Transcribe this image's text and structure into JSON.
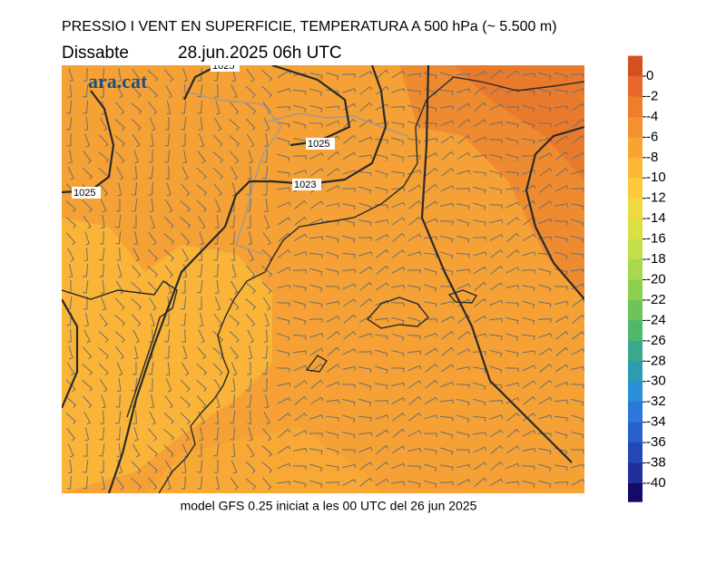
{
  "title": "PRESSIO I VENT EN SUPERFICIE, TEMPERATURA A 500 hPa (~ 5.500 m)",
  "day": "Dissabte",
  "datetime": "28.jun.2025 06h UTC",
  "logo": "ara.cat",
  "isobar_labels": [
    "1025",
    "1025",
    "1023",
    "1025"
  ],
  "colorbar": {
    "ticks": [
      0,
      -2,
      -4,
      -6,
      -8,
      -10,
      -12,
      -14,
      -16,
      -18,
      -20,
      -22,
      -24,
      -26,
      -28,
      -30,
      -32,
      -34,
      -36,
      -38,
      -40
    ],
    "colors": [
      "#d4501c",
      "#e8672a",
      "#f07c2c",
      "#f5902f",
      "#f8a433",
      "#fbb836",
      "#fbc93a",
      "#f0d93e",
      "#dcdf42",
      "#c3df48",
      "#a8d94c",
      "#8cd050",
      "#6ec45a",
      "#4fb86c",
      "#3aa88a",
      "#2d9bb0",
      "#2a8ed8",
      "#2a78dc",
      "#2860cc",
      "#2448b4",
      "#20309a",
      "#140a6a"
    ]
  },
  "footer": "model GFS 0.25 iniciat a les 00 UTC del 26 jun 2025"
}
